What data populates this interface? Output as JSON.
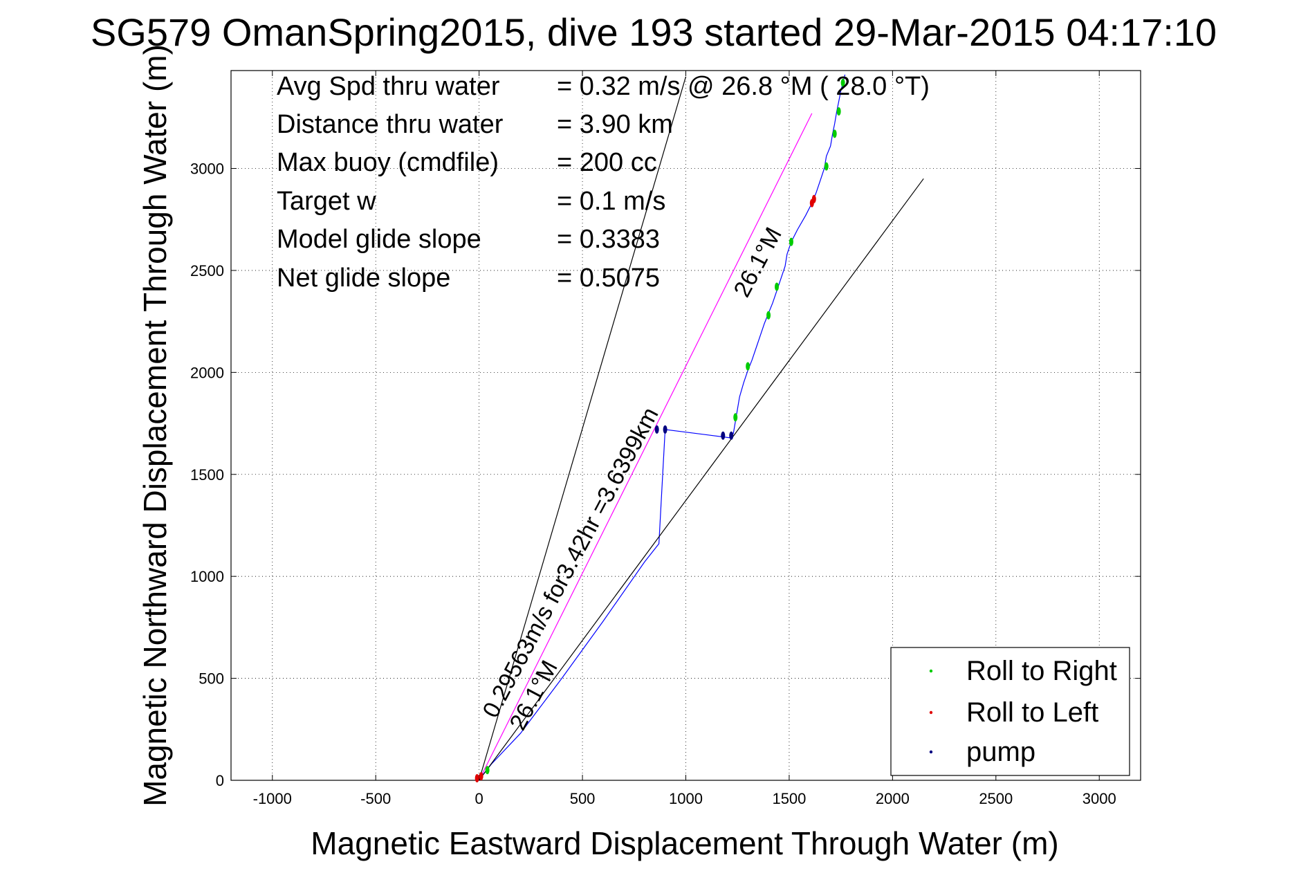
{
  "chart_data": {
    "type": "line",
    "title": "SG579 OmanSpring2015, dive 193 started 29-Mar-2015 04:17:10",
    "xlabel": "Magnetic Eastward Displacement Through Water (m)",
    "ylabel": "Magnetic Northward Displacement Through Water (m)",
    "xlim": [
      -1200,
      3200
    ],
    "ylim": [
      0,
      3480
    ],
    "xticks": [
      -1000,
      -500,
      0,
      500,
      1000,
      1500,
      2000,
      2500,
      3000
    ],
    "xtick_labels": [
      "-1000",
      "-500",
      "0",
      "500",
      "1000",
      "1500",
      "2000",
      "2500",
      "3000"
    ],
    "yticks": [
      0,
      500,
      1000,
      1500,
      2000,
      2500,
      3000
    ],
    "ytick_labels": [
      "0",
      "500",
      "1000",
      "1500",
      "2000",
      "2500",
      "3000"
    ],
    "stats": [
      {
        "label": "Avg Spd thru water",
        "value": "=  0.32 m/s @  26.8 °M ( 28.0 °T)"
      },
      {
        "label": "Distance thru water",
        "value": "=  3.90 km"
      },
      {
        "label": "Max buoy (cmdfile)",
        "value": "= 200 cc"
      },
      {
        "label": "Target w",
        "value": "= 0.1 m/s"
      },
      {
        "label": "Model glide slope",
        "value": "= 0.3383"
      },
      {
        "label": "Net glide slope",
        "value": "= 0.5075"
      }
    ],
    "annotations": {
      "speed_line": "0.29563m/s for3.42hr =3.6399km",
      "heading_near": "26.1°M",
      "heading_far": "26.1°M"
    },
    "legend": {
      "position": "bottom-right",
      "entries": [
        {
          "label": "Roll to Right",
          "color": "#00cc00"
        },
        {
          "label": "Roll to Left",
          "color": "#e00000"
        },
        {
          "label": "pump",
          "color": "#000080"
        }
      ]
    },
    "series": [
      {
        "role": "track",
        "color": "#0000ff",
        "x": [
          0,
          20,
          60,
          200,
          400,
          600,
          800,
          870,
          900,
          1210,
          1230,
          1240,
          1250,
          1260,
          1280,
          1300,
          1320,
          1340,
          1360,
          1380,
          1400,
          1420,
          1440,
          1460,
          1480,
          1490,
          1510,
          1540,
          1580,
          1610,
          1630,
          1650,
          1670,
          1680,
          1700,
          1710,
          1720,
          1730,
          1740,
          1750,
          1760,
          1770
        ],
        "y": [
          0,
          30,
          80,
          230,
          500,
          780,
          1070,
          1160,
          1720,
          1680,
          1700,
          1760,
          1820,
          1880,
          1950,
          2010,
          2060,
          2120,
          2180,
          2240,
          2290,
          2340,
          2400,
          2460,
          2520,
          2580,
          2640,
          2700,
          2770,
          2830,
          2880,
          2940,
          3000,
          3060,
          3110,
          3170,
          3220,
          3280,
          3330,
          3380,
          3420,
          3460
        ]
      },
      {
        "role": "speed-line",
        "color": "#ff00ff",
        "x": [
          0,
          1610
        ],
        "y": [
          0,
          3270
        ]
      },
      {
        "role": "heading-bound-left",
        "color": "#000000",
        "x": [
          0,
          1000
        ],
        "y": [
          0,
          3450
        ]
      },
      {
        "role": "heading-bound-right",
        "color": "#000000",
        "x": [
          0,
          2150
        ],
        "y": [
          0,
          2950
        ]
      }
    ],
    "markers": {
      "roll_right": {
        "color": "#00cc00",
        "x": [
          40,
          1240,
          1300,
          1400,
          1440,
          1510,
          1680,
          1720,
          1740,
          1760
        ],
        "y": [
          50,
          1780,
          2030,
          2280,
          2420,
          2640,
          3010,
          3170,
          3280,
          3420
        ]
      },
      "roll_left": {
        "color": "#e00000",
        "x": [
          -10,
          10,
          1610,
          1620
        ],
        "y": [
          10,
          20,
          2830,
          2850
        ]
      },
      "pump": {
        "color": "#000080",
        "x": [
          860,
          900,
          1180,
          1220
        ],
        "y": [
          1720,
          1720,
          1690,
          1690
        ]
      }
    }
  }
}
